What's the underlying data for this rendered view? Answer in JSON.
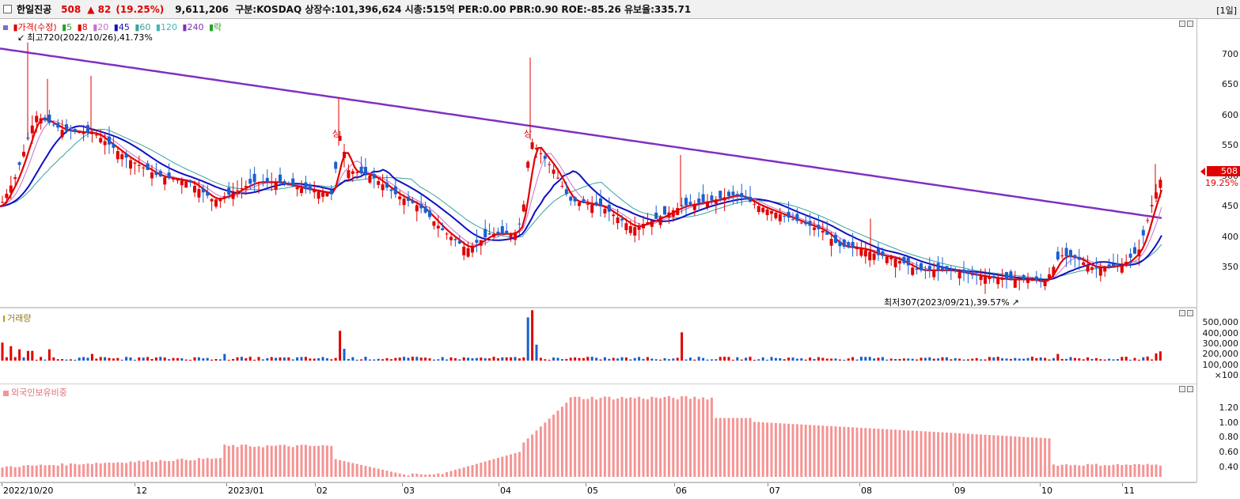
{
  "header": {
    "stock_name": "한일진공",
    "price": "508",
    "change": "▲ 82",
    "change_pct": "(19.25%)",
    "info": "9,611,206  구분:KOSDAQ 상장수:101,396,624 시총:515억 PER:0.00 PBR:0.90 ROE:-85.26 유보율:335.71",
    "period": "[1일]"
  },
  "price_panel": {
    "legend": [
      {
        "label": "가격(수정)",
        "color": "#e00000"
      },
      {
        "label": "5",
        "color": "#2aa02a"
      },
      {
        "label": "8",
        "color": "#e00000"
      },
      {
        "label": "20",
        "color": "#c870c8"
      },
      {
        "label": "45",
        "color": "#1010c0"
      },
      {
        "label": "60",
        "color": "#3aa0a0"
      },
      {
        "label": "120",
        "color": "#40b8b8"
      },
      {
        "label": "240",
        "color": "#8030c0"
      },
      {
        "label": "락",
        "color": "#2aa02a"
      }
    ],
    "high_note": "최고720(2022/10/26),41.73%",
    "low_note": "최저307(2023/09/21),39.57%",
    "markers": [
      "상",
      "상"
    ],
    "ticks": [
      "700",
      "650",
      "600",
      "550",
      "500",
      "450",
      "400",
      "350"
    ],
    "current_price": "508",
    "current_pct": "19.25%"
  },
  "volume_panel": {
    "title": "거래량",
    "ticks": [
      "500,000",
      "400,000",
      "300,000",
      "200,000",
      "100,000",
      "×100"
    ]
  },
  "foreign_panel": {
    "title": "외국인보유비중",
    "ticks": [
      "1.20",
      "1.00",
      "0.80",
      "0.60",
      "0.40"
    ]
  },
  "x_axis": [
    "2022/10/20",
    "12",
    "2023/01",
    "02",
    "03",
    "04",
    "05",
    "06",
    "07",
    "08",
    "09",
    "10",
    "11"
  ],
  "colors": {
    "up": "#e00000",
    "down": "#1a5fd0",
    "foreign_bar": "#f59494",
    "ma240": "#8030c0",
    "ma45": "#1010c0"
  }
}
